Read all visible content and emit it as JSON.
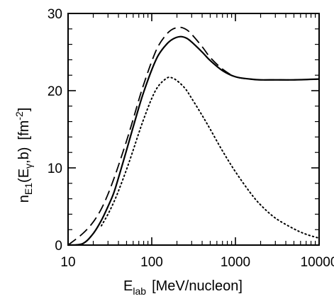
{
  "chart_data": {
    "type": "line",
    "title": "",
    "x_scale": "log",
    "y_scale": "linear",
    "xlim": [
      10,
      10000
    ],
    "ylim": [
      0,
      30
    ],
    "grid": false,
    "x_ticks": [
      10,
      100,
      1000,
      10000
    ],
    "x_tick_labels": [
      "10",
      "100",
      "1000",
      "10000"
    ],
    "y_ticks": [
      0,
      10,
      20,
      30
    ],
    "y_tick_labels": [
      "0",
      "10",
      "20",
      "30"
    ],
    "xlabel": {
      "base": "E",
      "subscript": "lab",
      "suffix": "[MeV/nucleon]"
    },
    "ylabel": {
      "base": "n",
      "subscript": "E1",
      "arg_open": "(E",
      "arg_sub": "γ",
      "arg_close": ",b)",
      "unit": "[fm",
      "unit_sup": "-2",
      "unit_close": "]"
    },
    "series": [
      {
        "style": "solid",
        "x": [
          10,
          15,
          20,
          25,
          30,
          35,
          40,
          50,
          60,
          70,
          80,
          100,
          120,
          150,
          180,
          220,
          260,
          300,
          400,
          500,
          700,
          1000,
          1500,
          2000,
          3000,
          5000,
          10000
        ],
        "y": [
          0,
          0.2,
          1.5,
          3.2,
          5.0,
          6.7,
          8.7,
          12.3,
          15.3,
          17.8,
          19.8,
          22.7,
          24.6,
          26.0,
          26.7,
          27.0,
          26.8,
          26.3,
          25.0,
          23.9,
          22.6,
          21.8,
          21.5,
          21.4,
          21.4,
          21.4,
          21.5
        ]
      },
      {
        "style": "dashed",
        "x": [
          10,
          15,
          20,
          25,
          30,
          35,
          40,
          50,
          60,
          70,
          80,
          100,
          120,
          150,
          180,
          220,
          260,
          300,
          400,
          500,
          700,
          1000,
          1500,
          2000,
          3000,
          5000,
          10000
        ],
        "y": [
          0,
          1.5,
          3.0,
          4.7,
          6.6,
          8.5,
          10.3,
          13.5,
          16.3,
          18.8,
          20.8,
          23.8,
          25.8,
          27.3,
          28.0,
          28.2,
          27.9,
          27.3,
          25.7,
          24.3,
          22.8,
          21.8,
          21.5,
          21.4,
          21.4,
          21.4,
          21.5
        ]
      },
      {
        "style": "dotted",
        "x": [
          25,
          30,
          35,
          40,
          50,
          60,
          70,
          80,
          100,
          120,
          150,
          170,
          200,
          250,
          300,
          400,
          500,
          700,
          1000,
          1500,
          2000,
          3000,
          5000,
          7000,
          10000
        ],
        "y": [
          2.5,
          4.0,
          5.5,
          7.0,
          9.8,
          12.3,
          14.5,
          16.3,
          19.0,
          20.6,
          21.6,
          21.7,
          21.3,
          20.3,
          19.0,
          16.8,
          15.0,
          12.2,
          9.5,
          6.8,
          5.2,
          3.5,
          2.1,
          1.4,
          0.9
        ]
      }
    ]
  }
}
